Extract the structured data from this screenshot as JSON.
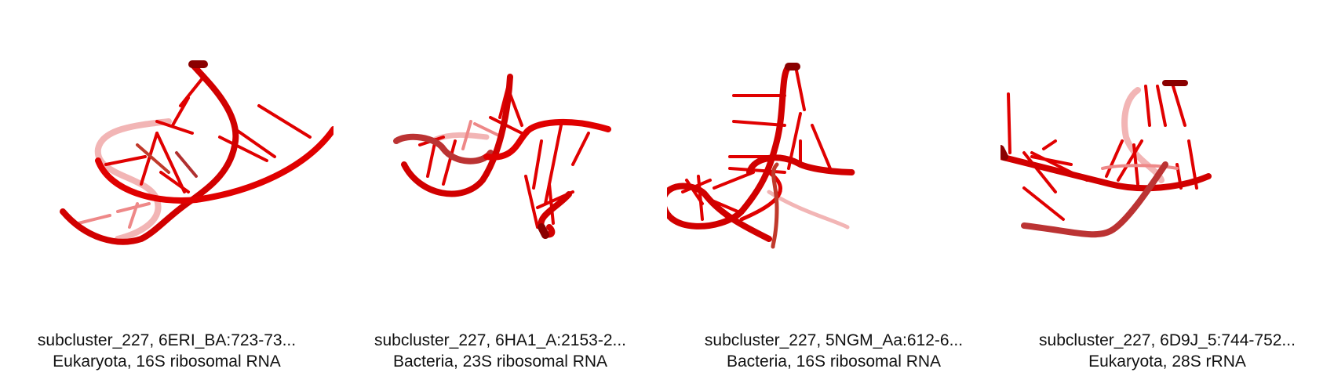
{
  "structure_color": "#e00000",
  "panels": [
    {
      "label": "subcluster_227, 6ERI_BA:723-73...",
      "subtitle": "Eukaryota, 16S ribosomal RNA"
    },
    {
      "label": "subcluster_227, 6HA1_A:2153-2...",
      "subtitle": "Bacteria, 23S ribosomal RNA"
    },
    {
      "label": "subcluster_227, 5NGM_Aa:612-6...",
      "subtitle": "Bacteria, 16S ribosomal RNA"
    },
    {
      "label": "subcluster_227, 6D9J_5:744-752...",
      "subtitle": "Eukaryota, 28S rRNA"
    }
  ]
}
